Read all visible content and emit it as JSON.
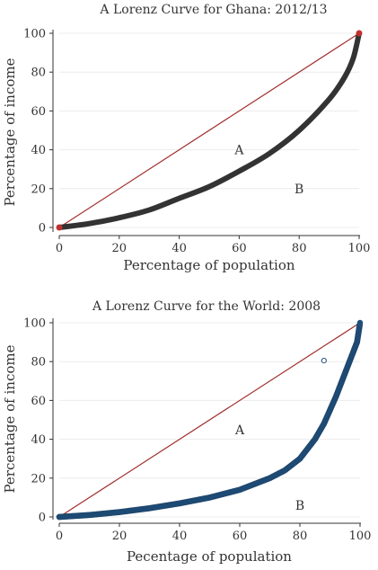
{
  "chart_data": [
    {
      "type": "line",
      "title": "A Lorenz Curve for Ghana: 2012/13",
      "xlabel": "Percentage of population",
      "ylabel": "Percentage of income",
      "xlim": [
        0,
        100
      ],
      "ylim": [
        0,
        100
      ],
      "xticks": [
        "0",
        "20",
        "40",
        "60",
        "80",
        "100"
      ],
      "yticks": [
        "0",
        "20",
        "40",
        "60",
        "80",
        "100"
      ],
      "annotations": [
        {
          "text": "A",
          "x": 60,
          "y": 40
        },
        {
          "text": "B",
          "x": 80,
          "y": 20
        }
      ],
      "series": [
        {
          "role": "equality-line",
          "color": "#a0302e",
          "x": [
            0,
            100
          ],
          "y": [
            0,
            100
          ]
        },
        {
          "role": "lorenz-curve",
          "color": "#333333",
          "x": [
            0,
            10,
            20,
            30,
            40,
            50,
            60,
            70,
            80,
            90,
            95,
            98,
            100
          ],
          "y": [
            0,
            2,
            5,
            9,
            15,
            21,
            29,
            38,
            50,
            66,
            77,
            87,
            100
          ]
        }
      ],
      "grid": true
    },
    {
      "type": "scatter",
      "title": "A Lorenz Curve for the World: 2008",
      "xlabel": "Pecentage of population",
      "ylabel": "Percentage of income",
      "xlim": [
        0,
        100
      ],
      "ylim": [
        0,
        100
      ],
      "xticks": [
        "0",
        "20",
        "40",
        "60",
        "80",
        "100"
      ],
      "yticks": [
        "0",
        "20",
        "40",
        "60",
        "80",
        "100"
      ],
      "annotations": [
        {
          "text": "A",
          "x": 60,
          "y": 45
        },
        {
          "text": "B",
          "x": 80,
          "y": 6
        }
      ],
      "series": [
        {
          "role": "equality-line",
          "color": "#a0302e",
          "x": [
            0,
            100
          ],
          "y": [
            0,
            100
          ]
        },
        {
          "role": "lorenz-points",
          "color": "#1f4e79",
          "x": [
            0,
            5,
            10,
            20,
            30,
            40,
            50,
            60,
            70,
            75,
            80,
            85,
            88,
            90,
            92,
            94,
            96,
            98,
            99,
            100
          ],
          "y": [
            0,
            0.5,
            1,
            2.5,
            4.5,
            7,
            10,
            14,
            20,
            24,
            30,
            40,
            48,
            55,
            62,
            70,
            78,
            86,
            90,
            100
          ]
        },
        {
          "role": "outlier",
          "color": "#1f4e79",
          "x": [
            88
          ],
          "y": [
            80.5
          ]
        }
      ],
      "grid": true
    }
  ]
}
